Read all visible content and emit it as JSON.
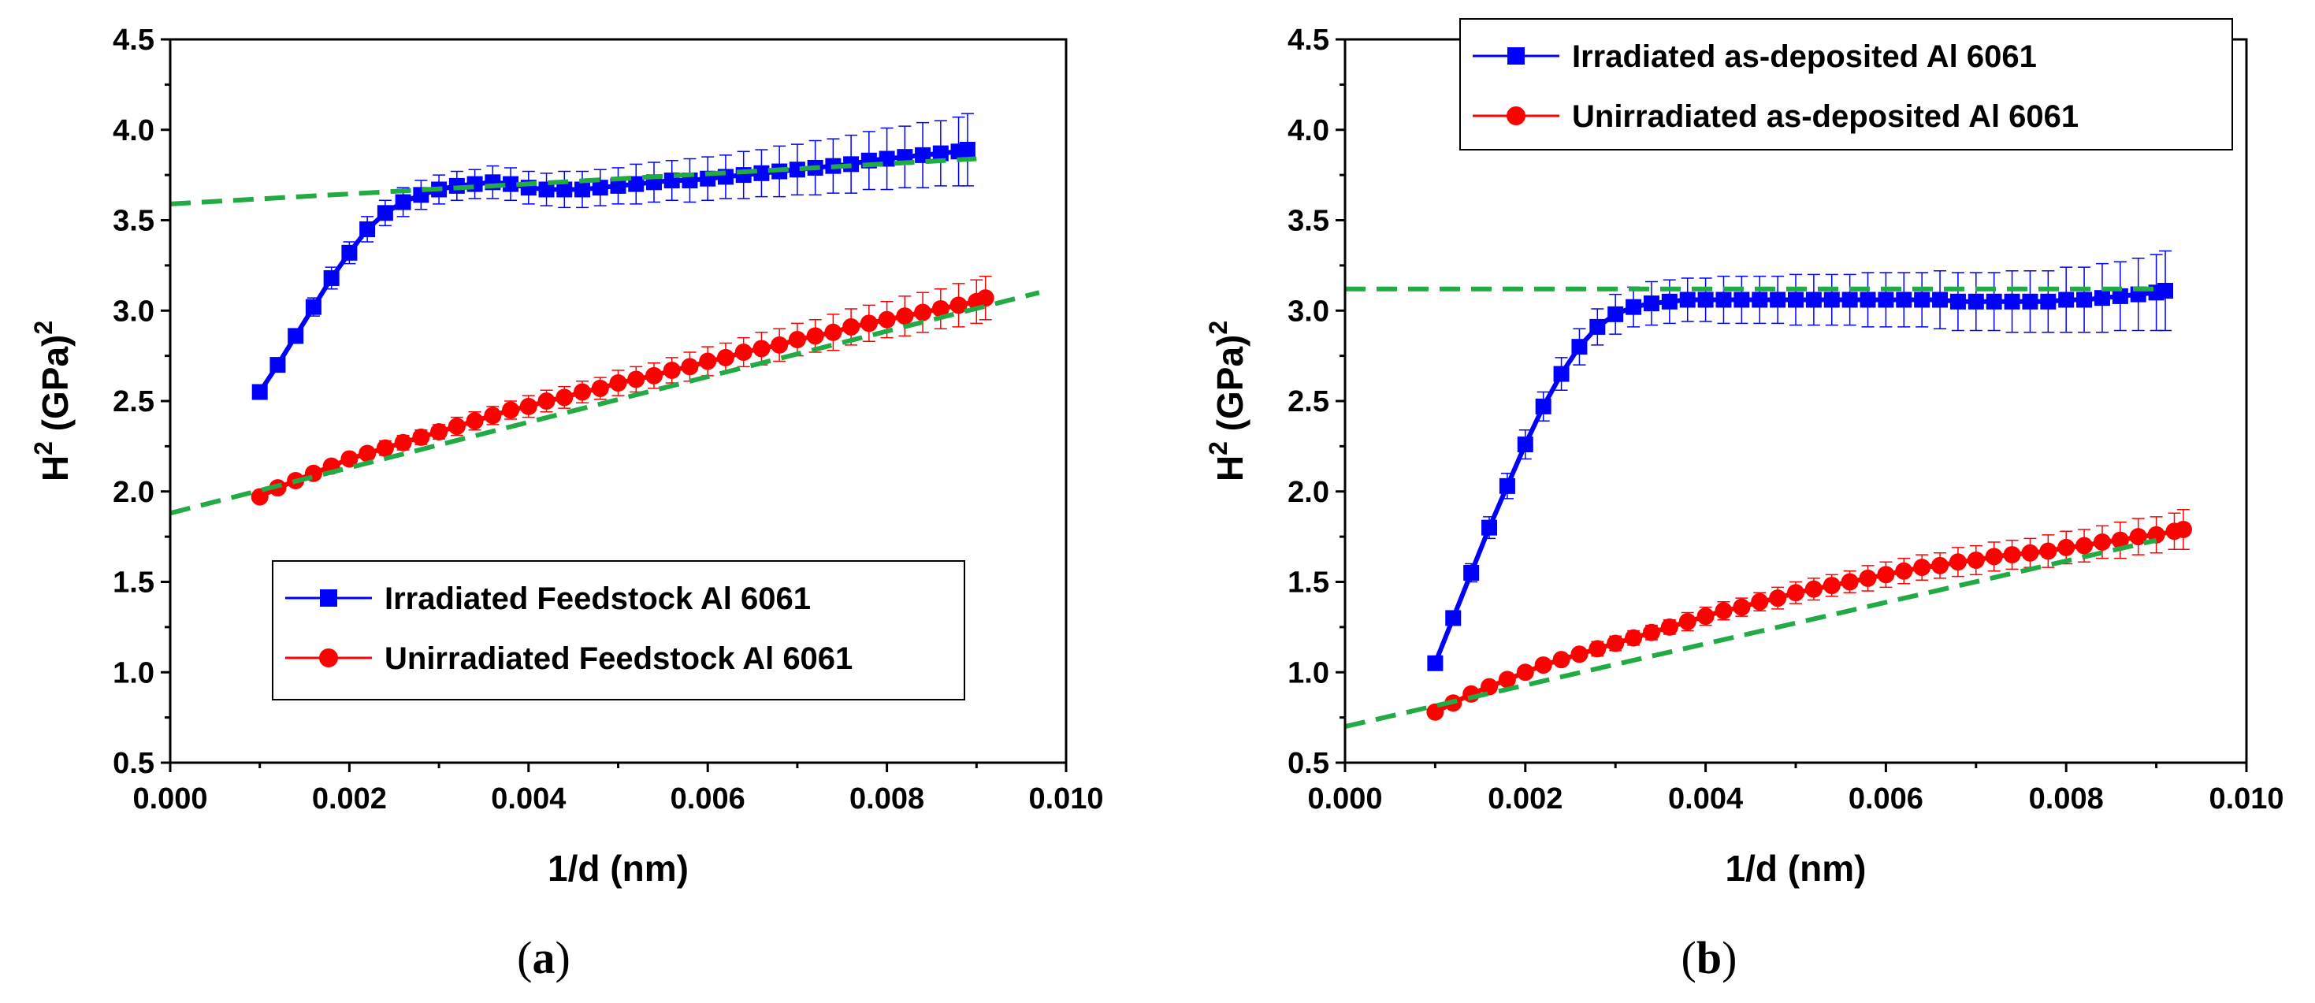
{
  "chart_data": [
    {
      "panel": "(a)",
      "type": "scatter",
      "caption_open": "(",
      "caption_letter": "a",
      "caption_close": ")",
      "xlabel": "1/d (nm)",
      "ylabel_base": "H",
      "ylabel_sup": "2",
      "ylabel_unit": " (GPa)",
      "ylabel_unit_sup": "2",
      "xlim": [
        0.0,
        0.01
      ],
      "ylim": [
        0.5,
        4.5
      ],
      "xticks": [
        "0.000",
        "0.002",
        "0.004",
        "0.006",
        "0.008",
        "0.010"
      ],
      "yticks": [
        "0.5",
        "1.0",
        "1.5",
        "2.0",
        "2.5",
        "3.0",
        "3.5",
        "4.0",
        "4.5"
      ],
      "grid": false,
      "legend_position": "lower-center",
      "series": [
        {
          "name": "Irradiated Feedstock Al 6061",
          "color": "#0000ff",
          "marker": "square",
          "x": [
            0.001,
            0.0012,
            0.0014,
            0.0016,
            0.0018,
            0.002,
            0.0022,
            0.0024,
            0.0026,
            0.0028,
            0.003,
            0.0032,
            0.0034,
            0.0036,
            0.0038,
            0.004,
            0.0042,
            0.0044,
            0.0046,
            0.0048,
            0.005,
            0.0052,
            0.0054,
            0.0056,
            0.0058,
            0.006,
            0.0062,
            0.0064,
            0.0066,
            0.0068,
            0.007,
            0.0072,
            0.0074,
            0.0076,
            0.0078,
            0.008,
            0.0082,
            0.0084,
            0.0086,
            0.0088,
            0.0089
          ],
          "y": [
            2.55,
            2.7,
            2.86,
            3.02,
            3.18,
            3.32,
            3.45,
            3.54,
            3.6,
            3.64,
            3.67,
            3.69,
            3.7,
            3.71,
            3.7,
            3.68,
            3.67,
            3.67,
            3.67,
            3.68,
            3.69,
            3.7,
            3.71,
            3.72,
            3.72,
            3.73,
            3.74,
            3.75,
            3.76,
            3.77,
            3.78,
            3.79,
            3.8,
            3.81,
            3.83,
            3.84,
            3.85,
            3.86,
            3.87,
            3.88,
            3.89
          ],
          "err": [
            0.03,
            0.03,
            0.04,
            0.05,
            0.06,
            0.06,
            0.07,
            0.07,
            0.08,
            0.08,
            0.08,
            0.08,
            0.08,
            0.09,
            0.09,
            0.09,
            0.09,
            0.1,
            0.1,
            0.1,
            0.1,
            0.11,
            0.11,
            0.11,
            0.12,
            0.12,
            0.12,
            0.13,
            0.13,
            0.14,
            0.14,
            0.15,
            0.15,
            0.16,
            0.16,
            0.17,
            0.17,
            0.18,
            0.18,
            0.19,
            0.2
          ]
        },
        {
          "name": "Unirradiated Feedstock Al 6061",
          "color": "#ff0000",
          "marker": "circle",
          "x": [
            0.001,
            0.0012,
            0.0014,
            0.0016,
            0.0018,
            0.002,
            0.0022,
            0.0024,
            0.0026,
            0.0028,
            0.003,
            0.0032,
            0.0034,
            0.0036,
            0.0038,
            0.004,
            0.0042,
            0.0044,
            0.0046,
            0.0048,
            0.005,
            0.0052,
            0.0054,
            0.0056,
            0.0058,
            0.006,
            0.0062,
            0.0064,
            0.0066,
            0.0068,
            0.007,
            0.0072,
            0.0074,
            0.0076,
            0.0078,
            0.008,
            0.0082,
            0.0084,
            0.0086,
            0.0088,
            0.009,
            0.0091
          ],
          "y": [
            1.97,
            2.02,
            2.06,
            2.1,
            2.14,
            2.18,
            2.21,
            2.24,
            2.27,
            2.3,
            2.33,
            2.36,
            2.39,
            2.42,
            2.45,
            2.47,
            2.5,
            2.52,
            2.55,
            2.57,
            2.6,
            2.62,
            2.64,
            2.67,
            2.69,
            2.72,
            2.74,
            2.77,
            2.79,
            2.81,
            2.84,
            2.86,
            2.88,
            2.91,
            2.93,
            2.95,
            2.97,
            2.99,
            3.01,
            3.03,
            3.05,
            3.07
          ],
          "err": [
            0.02,
            0.02,
            0.02,
            0.03,
            0.03,
            0.03,
            0.03,
            0.04,
            0.04,
            0.04,
            0.04,
            0.05,
            0.05,
            0.05,
            0.05,
            0.06,
            0.06,
            0.06,
            0.06,
            0.06,
            0.07,
            0.07,
            0.07,
            0.07,
            0.08,
            0.08,
            0.08,
            0.08,
            0.09,
            0.09,
            0.09,
            0.09,
            0.1,
            0.1,
            0.1,
            0.1,
            0.11,
            0.11,
            0.11,
            0.12,
            0.12,
            0.12
          ]
        }
      ],
      "fit_lines": [
        {
          "name": "fit-irradiated",
          "color": "#22aa44",
          "x": [
            0.0,
            0.009
          ],
          "y": [
            3.59,
            3.84
          ]
        },
        {
          "name": "fit-unirradiated",
          "color": "#22aa44",
          "x": [
            0.0,
            0.0097
          ],
          "y": [
            1.88,
            3.1
          ]
        }
      ]
    },
    {
      "panel": "(b)",
      "type": "scatter",
      "caption_open": "(",
      "caption_letter": "b",
      "caption_close": ")",
      "xlabel": "1/d (nm)",
      "ylabel_base": "H",
      "ylabel_sup": "2",
      "ylabel_unit": " (GPa)",
      "ylabel_unit_sup": "2",
      "xlim": [
        0.0,
        0.01
      ],
      "ylim": [
        0.5,
        4.5
      ],
      "xticks": [
        "0.000",
        "0.002",
        "0.004",
        "0.006",
        "0.008",
        "0.010"
      ],
      "yticks": [
        "0.5",
        "1.0",
        "1.5",
        "2.0",
        "2.5",
        "3.0",
        "3.5",
        "4.0",
        "4.5"
      ],
      "grid": false,
      "legend_position": "top-right",
      "series": [
        {
          "name": "Irradiated as-deposited Al 6061",
          "color": "#0000ff",
          "marker": "square",
          "x": [
            0.001,
            0.0012,
            0.0014,
            0.0016,
            0.0018,
            0.002,
            0.0022,
            0.0024,
            0.0026,
            0.0028,
            0.003,
            0.0032,
            0.0034,
            0.0036,
            0.0038,
            0.004,
            0.0042,
            0.0044,
            0.0046,
            0.0048,
            0.005,
            0.0052,
            0.0054,
            0.0056,
            0.0058,
            0.006,
            0.0062,
            0.0064,
            0.0066,
            0.0068,
            0.007,
            0.0072,
            0.0074,
            0.0076,
            0.0078,
            0.008,
            0.0082,
            0.0084,
            0.0086,
            0.0088,
            0.009,
            0.0091
          ],
          "y": [
            1.05,
            1.3,
            1.55,
            1.8,
            2.03,
            2.26,
            2.47,
            2.65,
            2.8,
            2.91,
            2.98,
            3.02,
            3.04,
            3.05,
            3.06,
            3.06,
            3.06,
            3.06,
            3.06,
            3.06,
            3.06,
            3.06,
            3.06,
            3.06,
            3.06,
            3.06,
            3.06,
            3.06,
            3.06,
            3.05,
            3.05,
            3.05,
            3.05,
            3.05,
            3.05,
            3.06,
            3.06,
            3.07,
            3.08,
            3.09,
            3.1,
            3.11
          ],
          "err": [
            0.03,
            0.04,
            0.05,
            0.06,
            0.07,
            0.08,
            0.08,
            0.09,
            0.1,
            0.1,
            0.11,
            0.11,
            0.12,
            0.12,
            0.12,
            0.12,
            0.13,
            0.13,
            0.13,
            0.13,
            0.14,
            0.14,
            0.14,
            0.14,
            0.15,
            0.15,
            0.15,
            0.15,
            0.16,
            0.16,
            0.16,
            0.16,
            0.17,
            0.17,
            0.17,
            0.18,
            0.18,
            0.19,
            0.19,
            0.2,
            0.21,
            0.22
          ]
        },
        {
          "name": "Unirradiated as-deposited Al 6061",
          "color": "#ff0000",
          "marker": "circle",
          "x": [
            0.001,
            0.0012,
            0.0014,
            0.0016,
            0.0018,
            0.002,
            0.0022,
            0.0024,
            0.0026,
            0.0028,
            0.003,
            0.0032,
            0.0034,
            0.0036,
            0.0038,
            0.004,
            0.0042,
            0.0044,
            0.0046,
            0.0048,
            0.005,
            0.0052,
            0.0054,
            0.0056,
            0.0058,
            0.006,
            0.0062,
            0.0064,
            0.0066,
            0.0068,
            0.007,
            0.0072,
            0.0074,
            0.0076,
            0.0078,
            0.008,
            0.0082,
            0.0084,
            0.0086,
            0.0088,
            0.009,
            0.0092,
            0.0093
          ],
          "y": [
            0.78,
            0.83,
            0.88,
            0.92,
            0.96,
            1.0,
            1.04,
            1.07,
            1.1,
            1.13,
            1.16,
            1.19,
            1.22,
            1.25,
            1.28,
            1.31,
            1.34,
            1.36,
            1.39,
            1.41,
            1.44,
            1.46,
            1.48,
            1.5,
            1.52,
            1.54,
            1.56,
            1.58,
            1.59,
            1.61,
            1.62,
            1.64,
            1.65,
            1.66,
            1.67,
            1.69,
            1.7,
            1.72,
            1.73,
            1.75,
            1.76,
            1.78,
            1.79
          ],
          "err": [
            0.02,
            0.02,
            0.02,
            0.02,
            0.03,
            0.03,
            0.03,
            0.03,
            0.03,
            0.04,
            0.04,
            0.04,
            0.04,
            0.04,
            0.05,
            0.05,
            0.05,
            0.05,
            0.05,
            0.06,
            0.06,
            0.06,
            0.06,
            0.06,
            0.07,
            0.07,
            0.07,
            0.07,
            0.07,
            0.08,
            0.08,
            0.08,
            0.08,
            0.08,
            0.09,
            0.09,
            0.09,
            0.09,
            0.1,
            0.1,
            0.1,
            0.1,
            0.11
          ]
        }
      ],
      "fit_lines": [
        {
          "name": "fit-irradiated",
          "color": "#22aa44",
          "x": [
            0.0,
            0.009
          ],
          "y": [
            3.12,
            3.12
          ]
        },
        {
          "name": "fit-unirradiated",
          "color": "#22aa44",
          "x": [
            0.0,
            0.009
          ],
          "y": [
            0.7,
            1.73
          ]
        }
      ]
    }
  ]
}
